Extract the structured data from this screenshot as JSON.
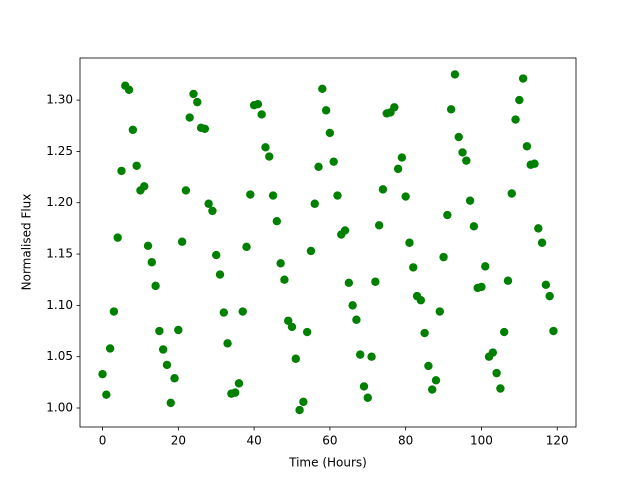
{
  "chart_data": {
    "type": "scatter",
    "x_label": "Time (Hours)",
    "y_label": "Normalised Flux",
    "color": "#008000",
    "x": [
      0,
      1,
      2,
      3,
      4,
      5,
      6,
      7,
      8,
      9,
      10,
      11,
      12,
      13,
      14,
      15,
      16,
      17,
      18,
      19,
      20,
      21,
      22,
      23,
      24,
      25,
      26,
      27,
      28,
      29,
      30,
      31,
      32,
      33,
      34,
      35,
      36,
      37,
      38,
      39,
      40,
      41,
      42,
      43,
      44,
      45,
      46,
      47,
      48,
      49,
      50,
      51,
      52,
      53,
      54,
      55,
      56,
      57,
      58,
      59,
      60,
      61,
      62,
      63,
      64,
      65,
      66,
      67,
      68,
      69,
      70,
      71,
      72,
      73,
      74,
      75,
      76,
      77,
      78,
      79,
      80,
      81,
      82,
      83,
      84,
      85,
      86,
      87,
      88,
      89,
      90,
      91,
      92,
      93,
      94,
      95,
      96,
      97,
      98,
      99,
      100,
      101,
      102,
      103,
      104,
      105,
      106,
      107,
      108,
      109,
      110,
      111,
      112,
      113,
      114,
      115,
      116,
      117,
      118,
      119
    ],
    "values": [
      1.033,
      1.013,
      1.058,
      1.094,
      1.166,
      1.231,
      1.314,
      1.31,
      1.271,
      1.236,
      1.212,
      1.216,
      1.158,
      1.142,
      1.119,
      1.075,
      1.057,
      1.042,
      1.005,
      1.029,
      1.076,
      1.162,
      1.212,
      1.283,
      1.306,
      1.298,
      1.273,
      1.272,
      1.199,
      1.192,
      1.149,
      1.13,
      1.093,
      1.063,
      1.014,
      1.015,
      1.024,
      1.094,
      1.157,
      1.208,
      1.295,
      1.296,
      1.286,
      1.254,
      1.245,
      1.207,
      1.182,
      1.141,
      1.125,
      1.085,
      1.079,
      1.048,
      0.998,
      1.006,
      1.074,
      1.153,
      1.199,
      1.235,
      1.311,
      1.29,
      1.268,
      1.24,
      1.207,
      1.169,
      1.173,
      1.122,
      1.1,
      1.086,
      1.052,
      1.021,
      1.01,
      1.05,
      1.123,
      1.178,
      1.213,
      1.287,
      1.288,
      1.293,
      1.233,
      1.244,
      1.206,
      1.161,
      1.137,
      1.109,
      1.105,
      1.073,
      1.041,
      1.018,
      1.027,
      1.094,
      1.147,
      1.188,
      1.291,
      1.325,
      1.264,
      1.249,
      1.241,
      1.202,
      1.177,
      1.117,
      1.118,
      1.138,
      1.05,
      1.054,
      1.034,
      1.019,
      1.074,
      1.124,
      1.209,
      1.281,
      1.3,
      1.321,
      1.255,
      1.237,
      1.238,
      1.175,
      1.161,
      1.12,
      1.109,
      1.075
    ],
    "xlim": [
      -5.95,
      124.95
    ],
    "ylim": [
      0.9815,
      1.341
    ],
    "xticks": [
      0,
      20,
      40,
      60,
      80,
      100,
      120
    ],
    "yticks": [
      {
        "value": 1.0,
        "label": "1.00"
      },
      {
        "value": 1.05,
        "label": "1.05"
      },
      {
        "value": 1.1,
        "label": "1.10"
      },
      {
        "value": 1.15,
        "label": "1.15"
      },
      {
        "value": 1.2,
        "label": "1.20"
      },
      {
        "value": 1.25,
        "label": "1.25"
      },
      {
        "value": 1.3,
        "label": "1.30"
      }
    ]
  }
}
